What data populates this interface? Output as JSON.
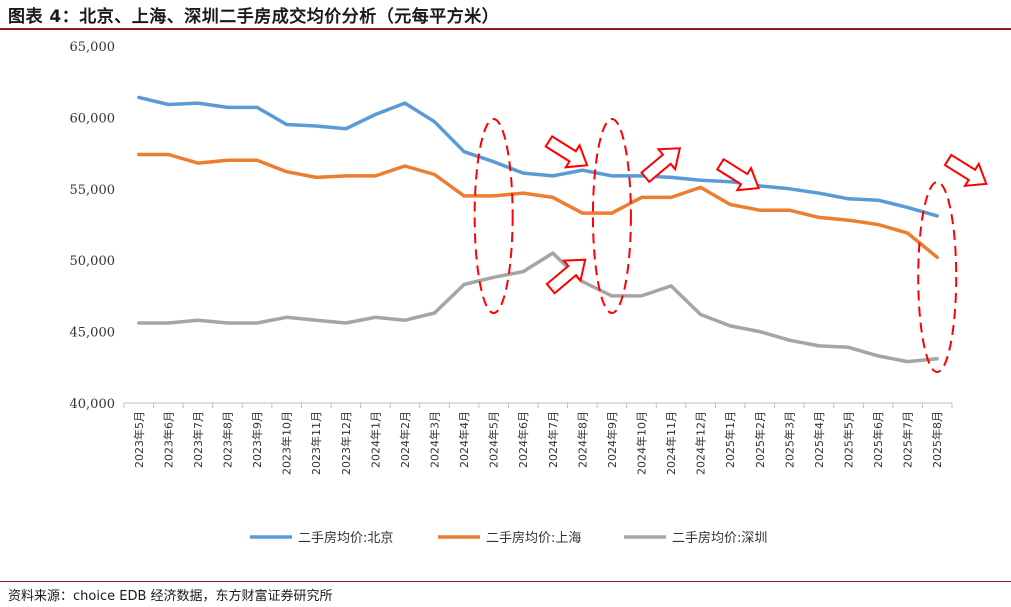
{
  "title": "图表 4：北京、上海、深圳二手房成交均价分析（元每平方米）",
  "source": "资料来源：choice EDB 经济数据，东方财富证券研究所",
  "chart_data": {
    "type": "line",
    "ylim": [
      40000,
      65000
    ],
    "yticks": [
      "40,000",
      "45,000",
      "50,000",
      "55,000",
      "60,000",
      "65,000"
    ],
    "categories": [
      "2023年5月",
      "2023年6月",
      "2023年7月",
      "2023年8月",
      "2023年9月",
      "2023年10月",
      "2023年11月",
      "2023年12月",
      "2024年1月",
      "2024年2月",
      "2024年3月",
      "2024年4月",
      "2024年5月",
      "2024年6月",
      "2024年7月",
      "2024年8月",
      "2024年9月",
      "2024年10月",
      "2024年11月",
      "2024年12月",
      "2025年1月",
      "2025年2月",
      "2025年3月",
      "2025年4月",
      "2025年5月",
      "2025年6月",
      "2025年7月",
      "2025年8月"
    ],
    "legend_position": "bottom",
    "grid": false,
    "series": [
      {
        "name": "二手房均价:北京",
        "color": "#5b9bd5",
        "values": [
          61400,
          60900,
          61000,
          60700,
          60700,
          59500,
          59400,
          59200,
          60200,
          61000,
          59700,
          57600,
          56900,
          56100,
          55900,
          56300,
          55900,
          55900,
          55800,
          55600,
          55500,
          55200,
          55000,
          54700,
          54300,
          54200,
          53700,
          53100
        ]
      },
      {
        "name": "二手房均价:上海",
        "color": "#ed7d31",
        "values": [
          57400,
          57400,
          56800,
          57000,
          57000,
          56200,
          55800,
          55900,
          55900,
          56600,
          56000,
          54500,
          54500,
          54700,
          54400,
          53300,
          53300,
          54400,
          54400,
          55100,
          53900,
          53500,
          53500,
          53000,
          52800,
          52500,
          51900,
          50200
        ]
      },
      {
        "name": "二手房均价:深圳",
        "color": "#a5a5a5",
        "values": [
          45600,
          45600,
          45800,
          45600,
          45600,
          46000,
          45800,
          45600,
          46000,
          45800,
          46300,
          48300,
          48800,
          49200,
          50500,
          48500,
          47500,
          47500,
          48200,
          46200,
          45400,
          45000,
          44400,
          44000,
          43900,
          43300,
          42900,
          43100
        ]
      }
    ],
    "annotations": {
      "ellipse_category_indices": [
        12,
        16,
        27
      ],
      "arrows": [
        {
          "category_index": 14.5,
          "value": 57500,
          "direction": "down-right"
        },
        {
          "category_index": 14.5,
          "value": 49000,
          "direction": "up-right"
        },
        {
          "category_index": 17.7,
          "value": 56800,
          "direction": "up-right"
        },
        {
          "category_index": 20.3,
          "value": 55900,
          "direction": "down-right"
        },
        {
          "category_index": 28,
          "value": 56200,
          "direction": "down-right"
        }
      ]
    }
  }
}
